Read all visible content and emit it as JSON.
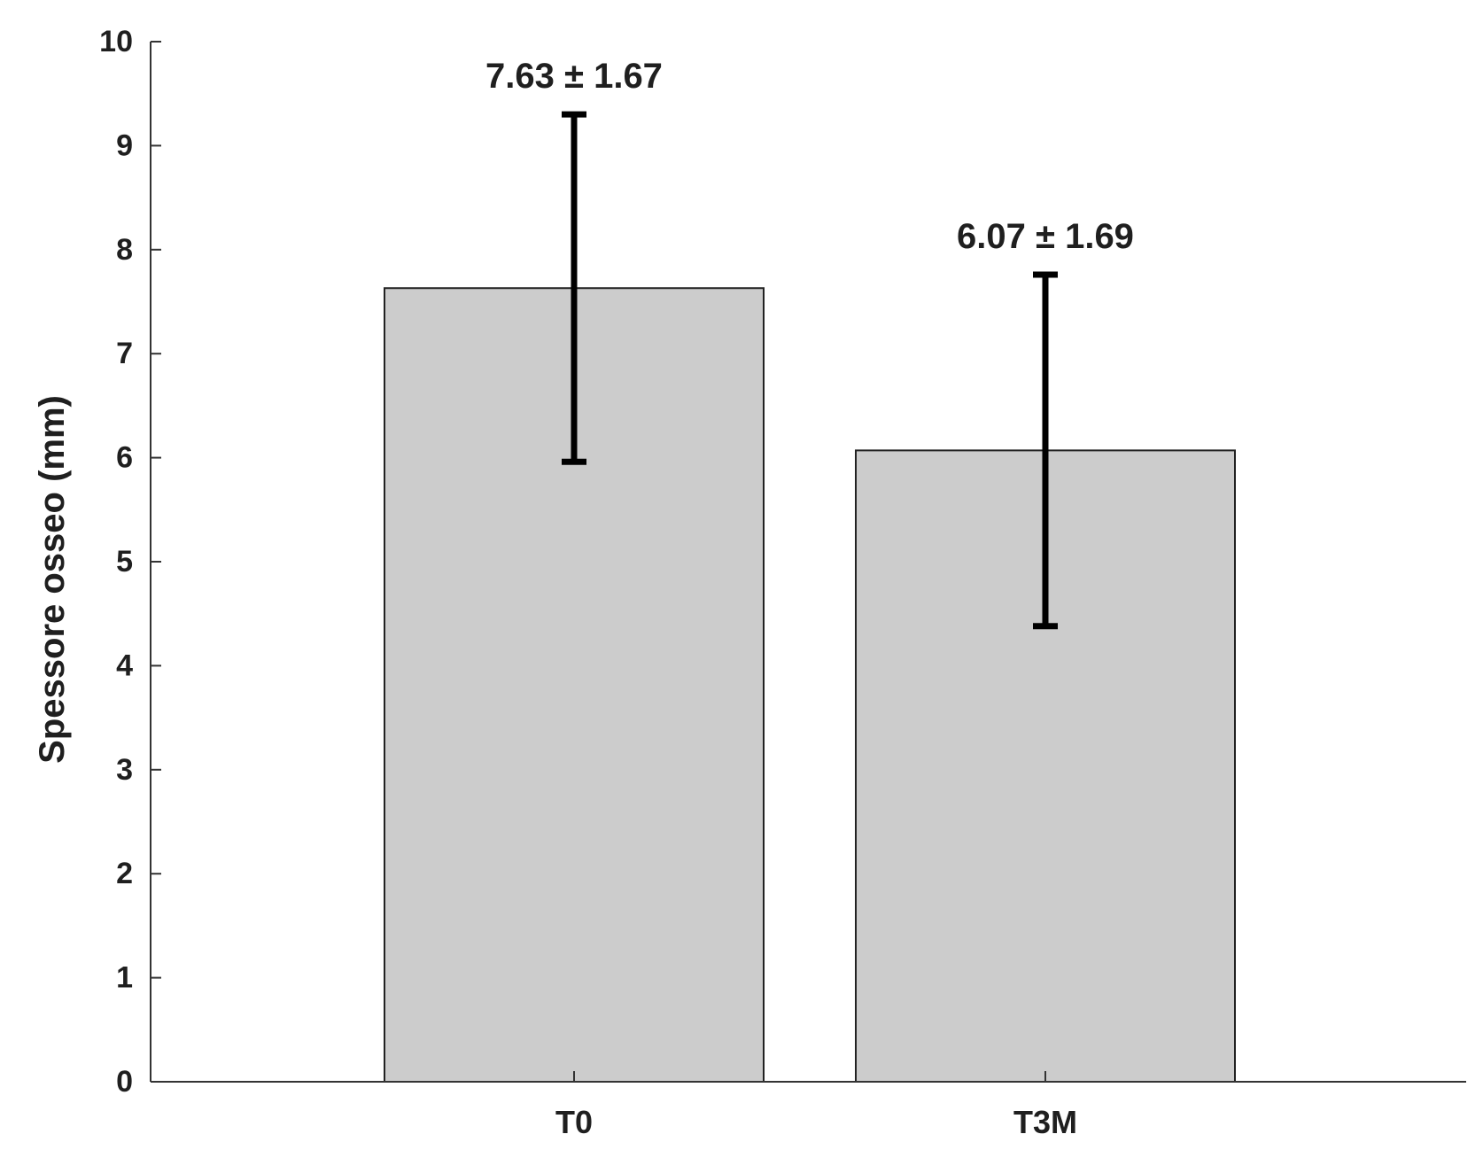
{
  "chart_data": {
    "type": "bar",
    "categories": [
      "T0",
      "T3M"
    ],
    "values": [
      7.63,
      6.07
    ],
    "errors": [
      1.67,
      1.69
    ],
    "data_labels": [
      "7.63 ± 1.67",
      "6.07 ± 1.69"
    ],
    "ylabel": "Spessore osseo (mm)",
    "xlabel": "",
    "ylim": [
      0,
      10
    ],
    "yticks": [
      0,
      1,
      2,
      3,
      4,
      5,
      6,
      7,
      8,
      9,
      10
    ],
    "grid": false,
    "colors": {
      "bar_fill": "#cccccc",
      "bar_stroke": "#222222",
      "error_bar": "#000000",
      "axis": "#333333"
    }
  }
}
